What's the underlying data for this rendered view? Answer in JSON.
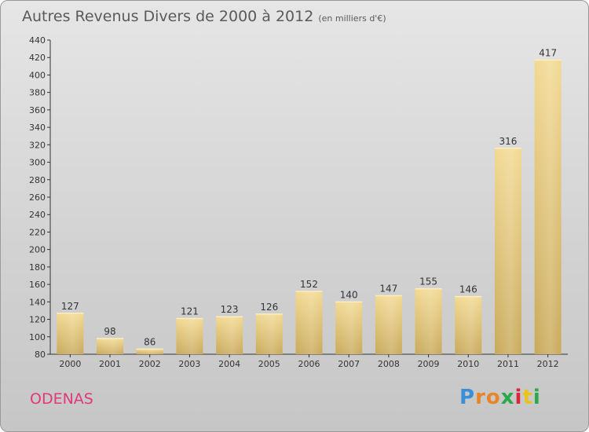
{
  "chart_data": {
    "type": "bar",
    "title": "Autres Revenus Divers de 2000 à 2012",
    "subtitle": "(en milliers d'€)",
    "categories": [
      "2000",
      "2001",
      "2002",
      "2003",
      "2004",
      "2005",
      "2006",
      "2007",
      "2008",
      "2009",
      "2010",
      "2011",
      "2012"
    ],
    "values": [
      127,
      98,
      86,
      121,
      123,
      126,
      152,
      140,
      147,
      155,
      146,
      316,
      417
    ],
    "ylim": [
      80,
      440
    ],
    "yticks": [
      80,
      100,
      120,
      140,
      160,
      180,
      200,
      220,
      240,
      260,
      280,
      300,
      320,
      340,
      360,
      380,
      400,
      420,
      440
    ],
    "grid": false,
    "bar_color": "#e6c77a"
  },
  "place_name": "ODENAS",
  "logo": {
    "text": "Proxiti",
    "letters": [
      "P",
      "r",
      "o",
      "x",
      "i",
      "t",
      "i"
    ],
    "colors": [
      "#3a8fd8",
      "#e8852b",
      "#e8852b",
      "#2aa84a",
      "#d9263b",
      "#e8c21f",
      "#2aa84a"
    ]
  }
}
